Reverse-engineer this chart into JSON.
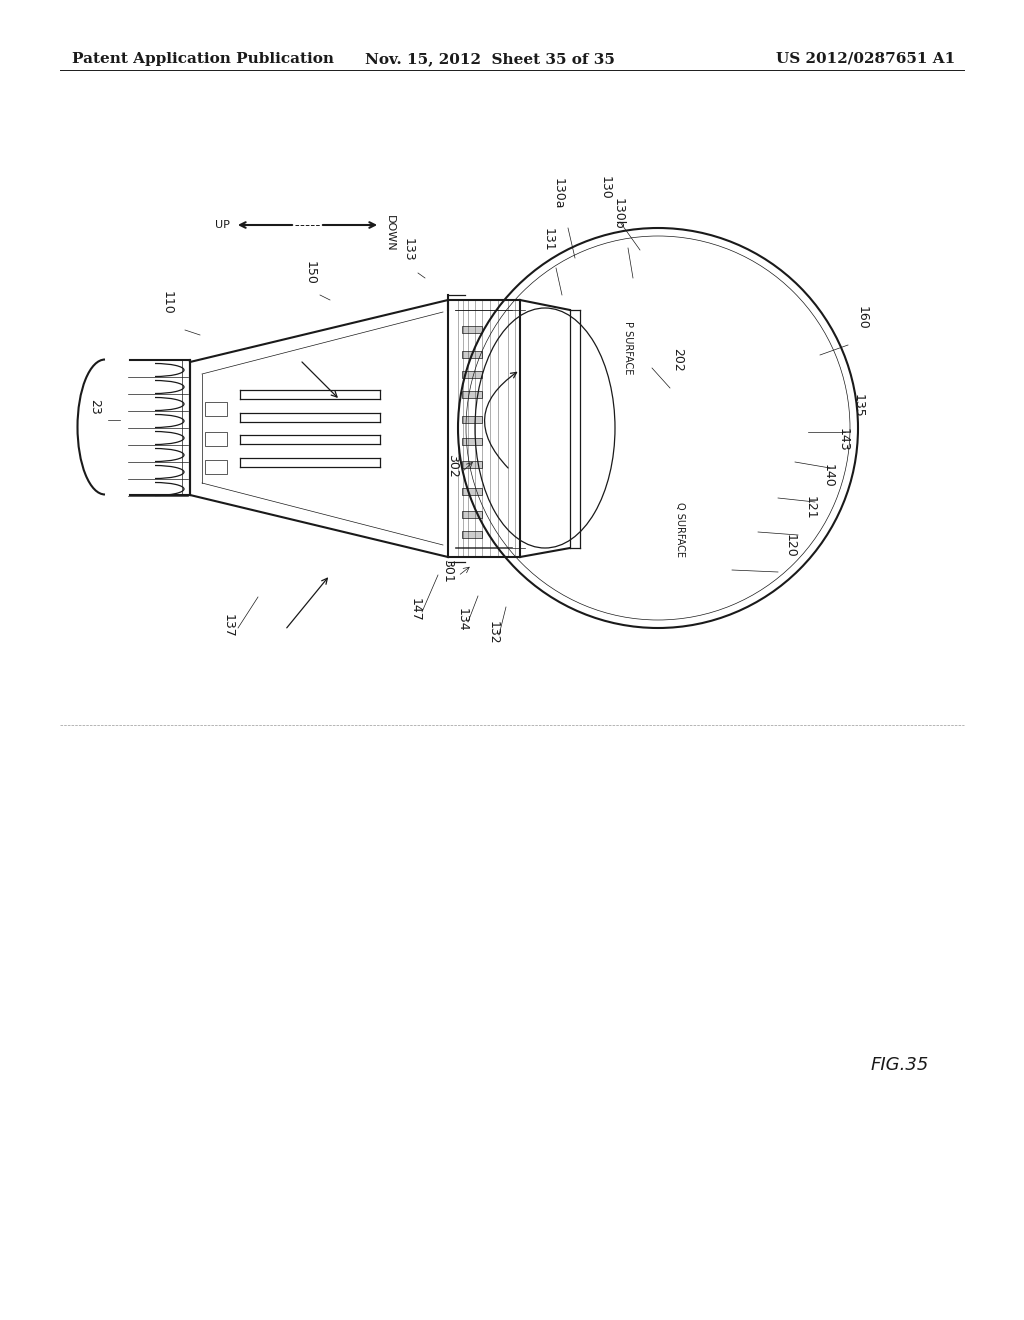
{
  "background_color": "#ffffff",
  "header_left": "Patent Application Publication",
  "header_mid": "Nov. 15, 2012  Sheet 35 of 35",
  "header_right": "US 2012/0287651 A1",
  "figure_label": "FIG.35",
  "header_fontsize": 11,
  "label_fontsize": 9
}
